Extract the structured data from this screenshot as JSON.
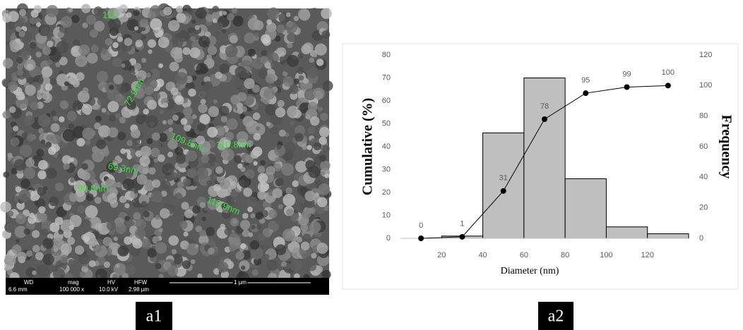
{
  "image": {
    "annotations": [
      "116.",
      "72.9nm",
      "109.8nm",
      "110.8nm",
      "69.3nm",
      "90.8nm",
      "119.9nm"
    ],
    "info_bar": {
      "labels": [
        "WD",
        "mag",
        "HV",
        "HFW"
      ],
      "values": [
        "6.6 mm",
        "100 000 x",
        "10.0 kV",
        "2.98 µm"
      ],
      "scale_bar": "1 µm"
    }
  },
  "chart_data": {
    "type": "histogram",
    "x_label": "Diameter (nm)",
    "y_label": "Cumulative (%)",
    "y2_label": "Frequency",
    "bins": [
      20,
      40,
      60,
      80,
      100,
      120,
      140
    ],
    "counts": [
      1,
      46,
      70,
      26,
      5,
      2
    ],
    "color": "#bfbfbf",
    "line": {
      "x": [
        10,
        30,
        50,
        70,
        90,
        110,
        130
      ],
      "values": [
        0,
        1,
        31,
        78,
        95,
        99,
        100
      ],
      "axis": "y2",
      "color": "#000000"
    },
    "xlim": [
      0,
      140
    ],
    "xticks": [
      20,
      40,
      60,
      80,
      100,
      120
    ],
    "ylim": [
      0,
      80
    ],
    "yticks": [
      0,
      10,
      20,
      30,
      40,
      50,
      60,
      70,
      80
    ],
    "y2lim": [
      0,
      120
    ],
    "y2ticks": [
      0,
      20,
      40,
      60,
      80,
      100,
      120
    ],
    "grid": false
  },
  "panel_labels": [
    "a1",
    "a2"
  ]
}
